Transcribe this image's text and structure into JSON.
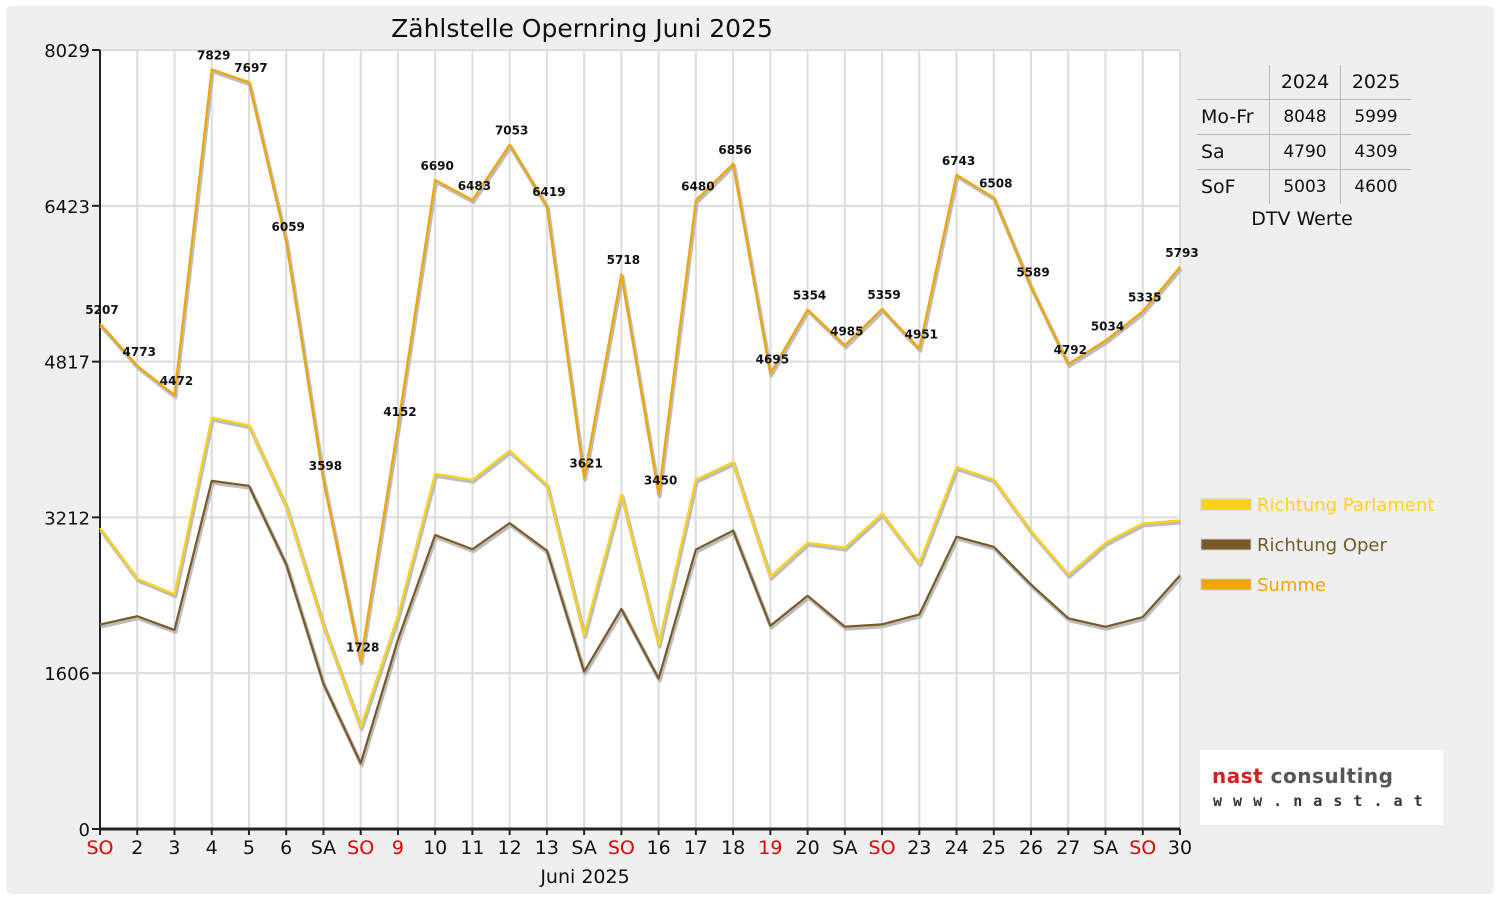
{
  "chart_data": {
    "type": "line",
    "title": "Zählstelle Opernring Juni 2025",
    "xlabel": "Juni 2025",
    "ylabel": "",
    "ylim": [
      0,
      8029
    ],
    "yticks": [
      0,
      1606,
      3212,
      4817,
      6423,
      8029
    ],
    "categories": [
      "SO",
      "2",
      "3",
      "4",
      "5",
      "6",
      "SA",
      "SO",
      "9",
      "10",
      "11",
      "12",
      "13",
      "SA",
      "SO",
      "16",
      "17",
      "18",
      "19",
      "20",
      "SA",
      "SO",
      "23",
      "24",
      "25",
      "26",
      "27",
      "SA",
      "SO",
      "30"
    ],
    "category_colors": [
      "red",
      "black",
      "black",
      "black",
      "black",
      "black",
      "black",
      "red",
      "red",
      "black",
      "black",
      "black",
      "black",
      "black",
      "red",
      "black",
      "black",
      "black",
      "red",
      "black",
      "black",
      "red",
      "black",
      "black",
      "black",
      "black",
      "black",
      "black",
      "red",
      "black"
    ],
    "grid": true,
    "legend_position": "right",
    "series": [
      {
        "name": "Richtung Parlament",
        "color": "#ffd21a",
        "values": [
          3100,
          2580,
          2420,
          4240,
          4160,
          3330,
          2100,
          1050,
          2200,
          3660,
          3600,
          3900,
          3550,
          2000,
          3450,
          1900,
          3600,
          3780,
          2600,
          2950,
          2900,
          3250,
          2740,
          3730,
          3600,
          3070,
          2620,
          2950,
          3150,
          3180
        ]
      },
      {
        "name": "Richtung Oper",
        "color": "#7a5a28",
        "values": [
          2107,
          2193,
          2052,
          3589,
          3537,
          2729,
          1498,
          678,
          1952,
          3030,
          2883,
          3153,
          2869,
          1621,
          2268,
          1550,
          2880,
          3076,
          2095,
          2404,
          2085,
          2109,
          2211,
          3013,
          2908,
          2519,
          2172,
          2084,
          2185,
          2613
        ]
      },
      {
        "name": "Summe",
        "color": "#f0a500",
        "values": [
          5207,
          4773,
          4472,
          7829,
          7697,
          6059,
          3598,
          1728,
          4152,
          6690,
          6483,
          7053,
          6419,
          3621,
          5718,
          3450,
          6480,
          6856,
          4695,
          5354,
          4985,
          5359,
          4951,
          6743,
          6508,
          5589,
          4792,
          5034,
          5335,
          5793
        ],
        "labels": [
          "5207",
          "4773",
          "4472",
          "7829",
          "7697",
          "6059",
          "3598",
          "1728",
          "4152",
          "6690",
          "6483",
          "7053",
          "6419",
          "3621",
          "5718",
          "3450",
          "6480",
          "6856",
          "4695",
          "5354",
          "4985",
          "5359",
          "4951",
          "6743",
          "6508",
          "5589",
          "4792",
          "5034",
          "5335",
          "5793"
        ]
      }
    ],
    "dtv_table": {
      "caption": "DTV Werte",
      "columns": [
        "2024",
        "2025"
      ],
      "rows": [
        {
          "label": "Mo-Fr",
          "values": [
            "8048",
            "5999"
          ]
        },
        {
          "label": "Sa",
          "values": [
            "4790",
            "4309"
          ]
        },
        {
          "label": "SoF",
          "values": [
            "5003",
            "4600"
          ]
        }
      ]
    }
  },
  "logo": {
    "name_part1": "nast",
    "name_part2": "consulting",
    "url": "w w w . n a s t . a t"
  }
}
